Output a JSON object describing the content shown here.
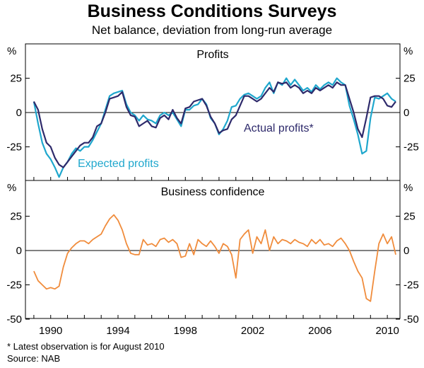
{
  "title": "Business Conditions Surveys",
  "subtitle": "Net balance, deviation from long-run average",
  "footnote": "*   Latest observation is for August 2010",
  "source": "Source: NAB",
  "colors": {
    "actual": "#2e2a6b",
    "expected": "#1fa7cd",
    "confidence": "#f08c3c",
    "zero_line": "#000000",
    "frame": "#000000"
  },
  "chart_data": [
    {
      "type": "line",
      "title": "Profits",
      "ylabel": "%",
      "ylim": [
        -50,
        40
      ],
      "yticks": [
        -25,
        0,
        25
      ],
      "ytick_labels": [
        "-25",
        "0",
        "25"
      ],
      "xlim": [
        1988.5,
        2010.75
      ],
      "annotations": [
        "Actual profits*",
        "Expected profits"
      ],
      "series": [
        {
          "name": "Actual profits*",
          "color": "#2e2a6b",
          "x": [
            1989.0,
            1989.25,
            1989.5,
            1989.75,
            1990.0,
            1990.25,
            1990.5,
            1990.75,
            1991.0,
            1991.25,
            1991.5,
            1991.75,
            1992.0,
            1992.25,
            1992.5,
            1992.75,
            1993.0,
            1993.25,
            1993.5,
            1993.75,
            1994.0,
            1994.25,
            1994.5,
            1994.75,
            1995.0,
            1995.25,
            1995.5,
            1995.75,
            1996.0,
            1996.25,
            1996.5,
            1996.75,
            1997.0,
            1997.25,
            1997.5,
            1997.75,
            1998.0,
            1998.25,
            1998.5,
            1998.75,
            1999.0,
            1999.25,
            1999.5,
            1999.75,
            2000.0,
            2000.25,
            2000.5,
            2000.75,
            2001.0,
            2001.25,
            2001.5,
            2001.75,
            2002.0,
            2002.25,
            2002.5,
            2002.75,
            2003.0,
            2003.25,
            2003.5,
            2003.75,
            2004.0,
            2004.25,
            2004.5,
            2004.75,
            2005.0,
            2005.25,
            2005.5,
            2005.75,
            2006.0,
            2006.25,
            2006.5,
            2006.75,
            2007.0,
            2007.25,
            2007.5,
            2007.75,
            2008.0,
            2008.25,
            2008.5,
            2008.75,
            2009.0,
            2009.25,
            2009.5,
            2009.75,
            2010.0,
            2010.25,
            2010.5
          ],
          "values": [
            8,
            2,
            -12,
            -22,
            -25,
            -33,
            -38,
            -40,
            -36,
            -32,
            -28,
            -24,
            -22,
            -22,
            -18,
            -10,
            -8,
            0,
            10,
            11,
            12,
            15,
            4,
            -2,
            -3,
            -10,
            -8,
            -6,
            -10,
            -11,
            -4,
            -2,
            -5,
            2,
            -4,
            -8,
            3,
            4,
            8,
            9,
            10,
            5,
            -3,
            -8,
            -15,
            -13,
            -12,
            -5,
            -2,
            5,
            12,
            12,
            10,
            8,
            10,
            14,
            18,
            15,
            22,
            21,
            22,
            18,
            20,
            18,
            14,
            16,
            14,
            18,
            16,
            18,
            20,
            18,
            22,
            20,
            20,
            10,
            0,
            -12,
            -18,
            -4,
            11,
            12,
            12,
            10,
            5,
            4,
            8
          ]
        },
        {
          "name": "Expected profits",
          "color": "#1fa7cd",
          "x": [
            1989.0,
            1989.25,
            1989.5,
            1989.75,
            1990.0,
            1990.25,
            1990.5,
            1990.75,
            1991.0,
            1991.25,
            1991.5,
            1991.75,
            1992.0,
            1992.25,
            1992.5,
            1992.75,
            1993.0,
            1993.25,
            1993.5,
            1993.75,
            1994.0,
            1994.25,
            1994.5,
            1994.75,
            1995.0,
            1995.25,
            1995.5,
            1995.75,
            1996.0,
            1996.25,
            1996.5,
            1996.75,
            1997.0,
            1997.25,
            1997.5,
            1997.75,
            1998.0,
            1998.25,
            1998.5,
            1998.75,
            1999.0,
            1999.25,
            1999.5,
            1999.75,
            2000.0,
            2000.25,
            2000.5,
            2000.75,
            2001.0,
            2001.25,
            2001.5,
            2001.75,
            2002.0,
            2002.25,
            2002.5,
            2002.75,
            2003.0,
            2003.25,
            2003.5,
            2003.75,
            2004.0,
            2004.25,
            2004.5,
            2004.75,
            2005.0,
            2005.25,
            2005.5,
            2005.75,
            2006.0,
            2006.25,
            2006.5,
            2006.75,
            2007.0,
            2007.25,
            2007.5,
            2007.75,
            2008.0,
            2008.25,
            2008.5,
            2008.75,
            2009.0,
            2009.25,
            2009.5,
            2009.75,
            2010.0,
            2010.25,
            2010.5
          ],
          "values": [
            8,
            -8,
            -22,
            -30,
            -34,
            -40,
            -47,
            -40,
            -36,
            -30,
            -26,
            -28,
            -25,
            -25,
            -20,
            -14,
            -8,
            2,
            12,
            14,
            15,
            16,
            6,
            0,
            -2,
            -6,
            -2,
            -5,
            -6,
            -8,
            -2,
            0,
            -2,
            0,
            -5,
            -10,
            2,
            2,
            5,
            6,
            10,
            6,
            -4,
            -8,
            -16,
            -12,
            -6,
            4,
            5,
            10,
            13,
            14,
            12,
            10,
            12,
            18,
            22,
            14,
            22,
            20,
            25,
            20,
            24,
            20,
            16,
            18,
            15,
            20,
            17,
            20,
            22,
            20,
            25,
            22,
            20,
            5,
            -5,
            -16,
            -30,
            -28,
            -4,
            11,
            10,
            12,
            14,
            10,
            8
          ]
        }
      ]
    },
    {
      "type": "line",
      "title": "Business confidence",
      "ylabel": "%",
      "ylim": [
        -50,
        40
      ],
      "yticks": [
        -50,
        -25,
        0,
        25
      ],
      "ytick_labels": [
        "-50",
        "-25",
        "0",
        "25"
      ],
      "xlim": [
        1988.5,
        2010.75
      ],
      "xticks": [
        1990,
        1994,
        1998,
        2002,
        2006,
        2010
      ],
      "xtick_labels": [
        "1990",
        "1994",
        "1998",
        "2002",
        "2006",
        "2010"
      ],
      "series": [
        {
          "name": "Business confidence",
          "color": "#f08c3c",
          "x": [
            1989.0,
            1989.25,
            1989.5,
            1989.75,
            1990.0,
            1990.25,
            1990.5,
            1990.75,
            1991.0,
            1991.25,
            1991.5,
            1991.75,
            1992.0,
            1992.25,
            1992.5,
            1992.75,
            1993.0,
            1993.25,
            1993.5,
            1993.75,
            1994.0,
            1994.25,
            1994.5,
            1994.75,
            1995.0,
            1995.25,
            1995.5,
            1995.75,
            1996.0,
            1996.25,
            1996.5,
            1996.75,
            1997.0,
            1997.25,
            1997.5,
            1997.75,
            1998.0,
            1998.25,
            1998.5,
            1998.75,
            1999.0,
            1999.25,
            1999.5,
            1999.75,
            2000.0,
            2000.25,
            2000.5,
            2000.75,
            2001.0,
            2001.25,
            2001.5,
            2001.75,
            2002.0,
            2002.25,
            2002.5,
            2002.75,
            2003.0,
            2003.25,
            2003.5,
            2003.75,
            2004.0,
            2004.25,
            2004.5,
            2004.75,
            2005.0,
            2005.25,
            2005.5,
            2005.75,
            2006.0,
            2006.25,
            2006.5,
            2006.75,
            2007.0,
            2007.25,
            2007.5,
            2007.75,
            2008.0,
            2008.25,
            2008.5,
            2008.75,
            2009.0,
            2009.25,
            2009.5,
            2009.75,
            2010.0,
            2010.25,
            2010.5
          ],
          "values": [
            -15,
            -22,
            -25,
            -28,
            -27,
            -28,
            -26,
            -12,
            -2,
            2,
            5,
            7,
            7,
            5,
            8,
            10,
            12,
            18,
            23,
            26,
            22,
            15,
            5,
            -2,
            -3,
            -3,
            8,
            4,
            5,
            3,
            8,
            9,
            6,
            8,
            5,
            -5,
            -4,
            5,
            -3,
            8,
            5,
            3,
            7,
            3,
            -2,
            5,
            3,
            -3,
            -20,
            8,
            12,
            15,
            -2,
            10,
            5,
            15,
            0,
            10,
            5,
            8,
            7,
            5,
            8,
            6,
            5,
            3,
            8,
            5,
            8,
            4,
            5,
            3,
            7,
            9,
            5,
            0,
            -8,
            -15,
            -20,
            -35,
            -37,
            -15,
            5,
            12,
            5,
            10,
            -3
          ]
        }
      ]
    }
  ]
}
